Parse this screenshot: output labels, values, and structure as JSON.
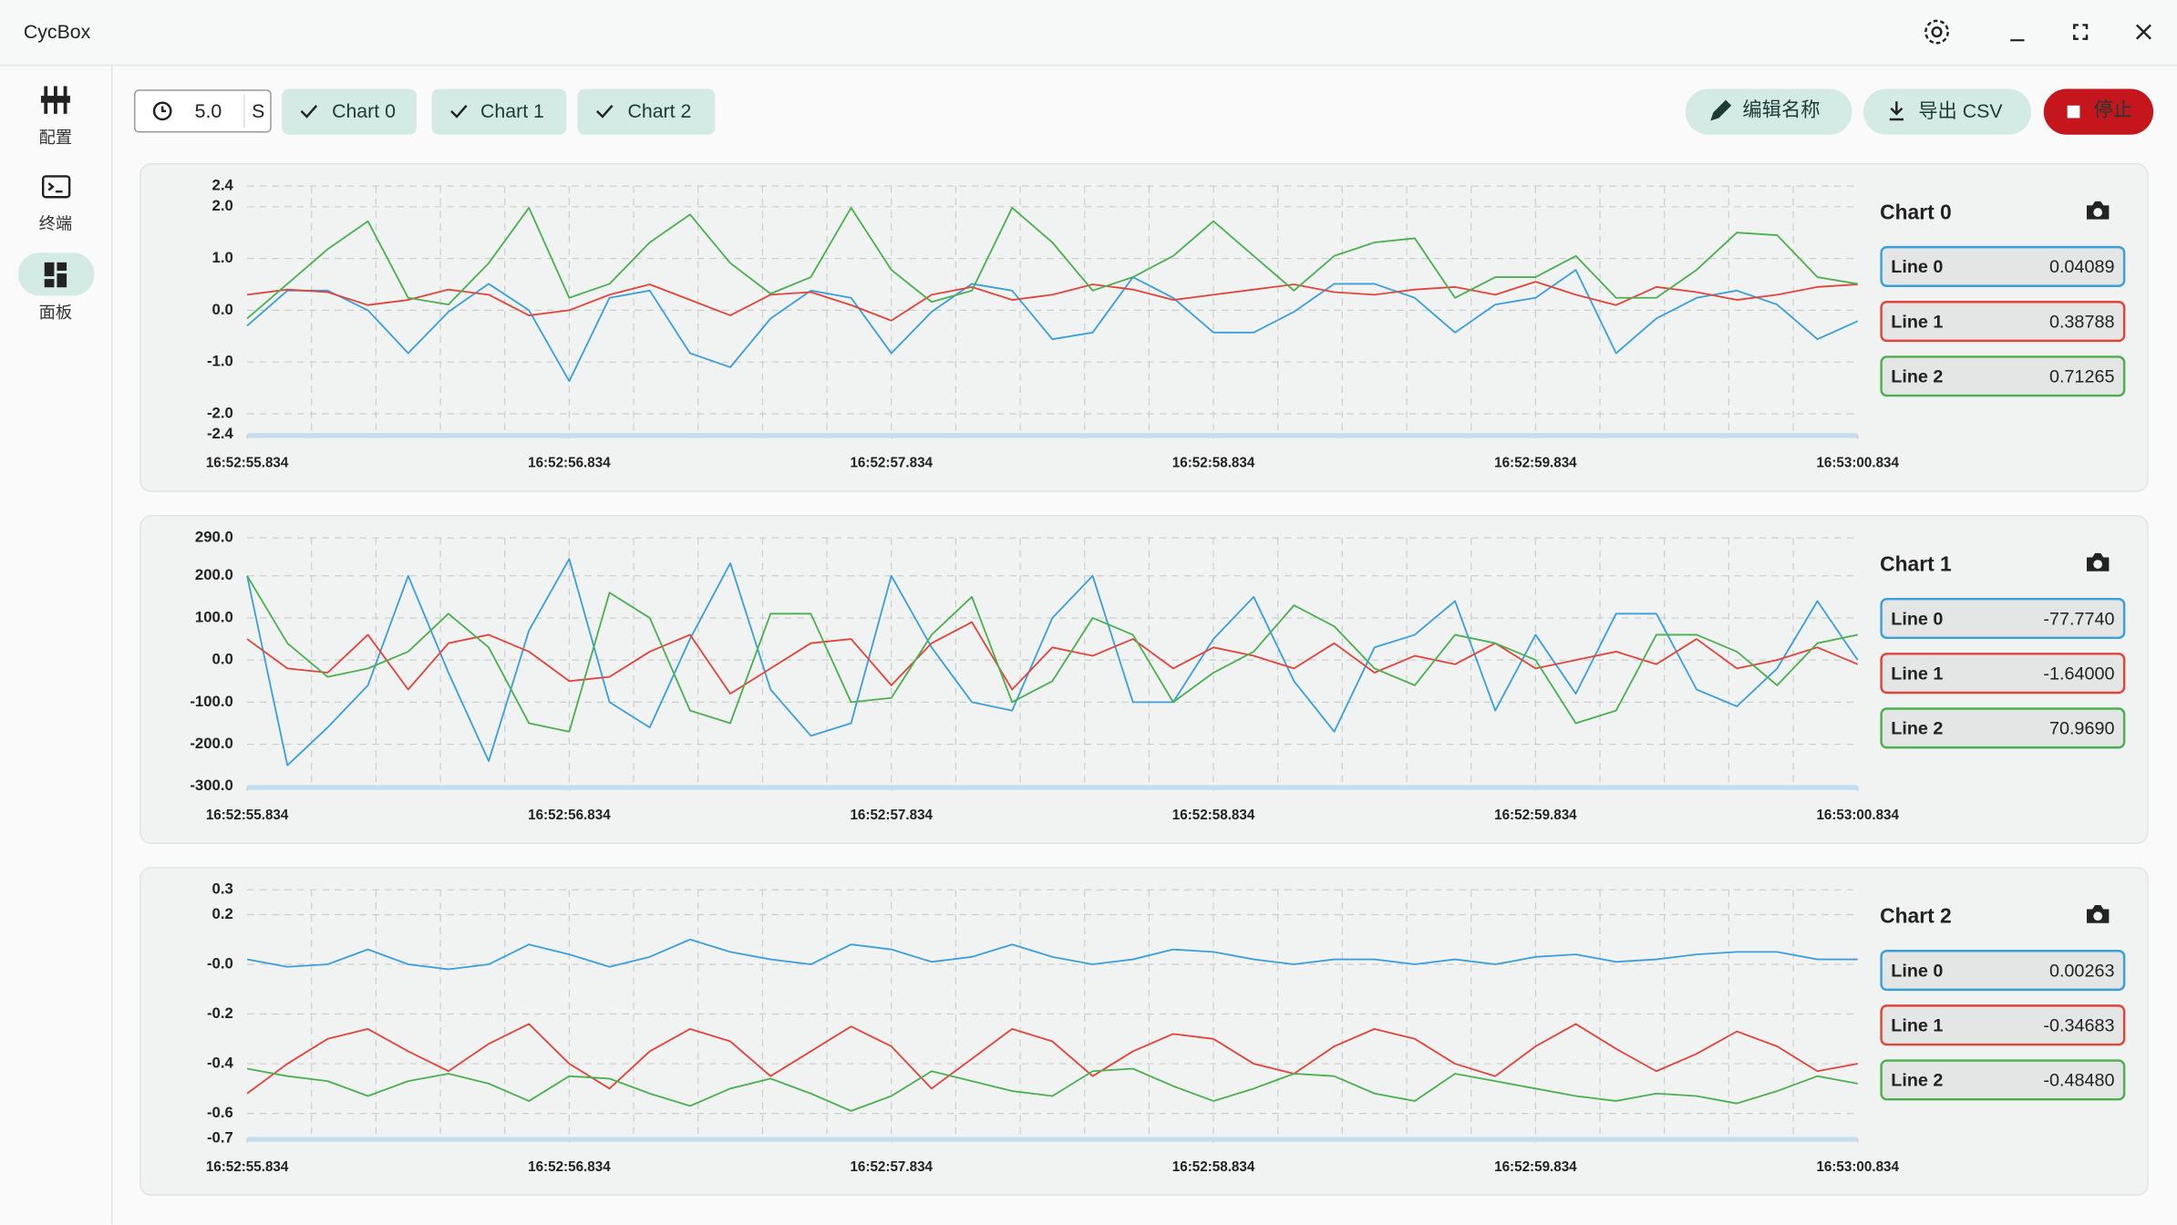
{
  "window": {
    "title": "CycBox"
  },
  "sidebar": [
    "配置",
    "终端",
    "面板"
  ],
  "toolbar": {
    "duration": "5.0",
    "unit": "S",
    "chart_toggles": [
      "Chart 0",
      "Chart 1",
      "Chart 2"
    ],
    "edit_name": "编辑名称",
    "export_csv": "导出 CSV",
    "stop": "停止"
  },
  "chart_data": [
    {
      "type": "line",
      "title": "Chart 0",
      "x": [
        0,
        0.125,
        0.25,
        0.375,
        0.5,
        0.625,
        0.75,
        0.875,
        1,
        1.125,
        1.25,
        1.375,
        1.5,
        1.625,
        1.75,
        1.875,
        2,
        2.125,
        2.25,
        2.375,
        2.5,
        2.625,
        2.75,
        2.875,
        3,
        3.125,
        3.25,
        3.375,
        3.5,
        3.625,
        3.75,
        3.875,
        4,
        4.125,
        4.25,
        4.375,
        4.5,
        4.625,
        4.75,
        4.875,
        5
      ],
      "xlim": [
        0,
        5
      ],
      "xticks": [
        {
          "value": 0,
          "label": "16:52:55.834"
        },
        {
          "value": 1,
          "label": "16:52:56.834"
        },
        {
          "value": 2,
          "label": "16:52:57.834"
        },
        {
          "value": 3,
          "label": "16:52:58.834"
        },
        {
          "value": 4,
          "label": "16:52:59.834"
        },
        {
          "value": 5,
          "label": "16:53:00.834"
        }
      ],
      "xgridticks": [
        0.2,
        0.4,
        0.6,
        0.8,
        1,
        1.2,
        1.4,
        1.6,
        1.8,
        2,
        2.2,
        2.4,
        2.6,
        2.8,
        3,
        3.2,
        3.4,
        3.6,
        3.8,
        4,
        4.2,
        4.4,
        4.6,
        4.8
      ],
      "ylim": [
        -2.4,
        2.4
      ],
      "yticks": [
        -2.4,
        {
          "value": -2,
          "label": "-2.0"
        },
        {
          "value": -1,
          "label": "-1.0"
        },
        {
          "value": 0,
          "label": "0.0"
        },
        {
          "value": 1,
          "label": "1.0"
        },
        {
          "value": 2,
          "label": "2.0"
        },
        2.4
      ],
      "grid": true,
      "series": [
        {
          "name": "Line 0",
          "color": "#3b9fdb",
          "current": "0.04089",
          "values": [
            -0.3,
            0.38,
            0.38,
            0,
            -0.83,
            -0.03,
            0.51,
            0,
            -1.37,
            0.24,
            0.38,
            -0.83,
            -1.1,
            -0.16,
            0.38,
            0.24,
            -0.83,
            -0.03,
            0.51,
            0.38,
            -0.56,
            -0.43,
            0.64,
            0.24,
            -0.43,
            -0.43,
            -0.03,
            0.51,
            0.51,
            0.24,
            -0.43,
            0.11,
            0.24,
            0.78,
            -0.83,
            -0.16,
            0.24,
            0.38,
            0.11,
            -0.56,
            -0.21
          ]
        },
        {
          "name": "Line 1",
          "color": "#e0443a",
          "current": "0.38788",
          "values": [
            0.3,
            0.4,
            0.35,
            0.1,
            0.2,
            0.4,
            0.3,
            -0.1,
            0,
            0.3,
            0.5,
            0.2,
            -0.1,
            0.3,
            0.35,
            0.1,
            -0.2,
            0.3,
            0.45,
            0.2,
            0.3,
            0.5,
            0.4,
            0.2,
            0.3,
            0.4,
            0.5,
            0.35,
            0.3,
            0.4,
            0.45,
            0.3,
            0.55,
            0.3,
            0.1,
            0.45,
            0.35,
            0.2,
            0.3,
            0.45,
            0.5
          ]
        },
        {
          "name": "Line 2",
          "color": "#4caf50",
          "current": "0.71265",
          "values": [
            -0.16,
            0.51,
            1.18,
            1.72,
            0.24,
            0.11,
            0.91,
            1.98,
            0.24,
            0.51,
            1.31,
            1.85,
            0.91,
            0.32,
            0.64,
            1.98,
            0.78,
            0.16,
            0.38,
            1.98,
            1.31,
            0.38,
            0.64,
            1.05,
            1.72,
            1.05,
            0.38,
            1.05,
            1.31,
            1.39,
            0.24,
            0.64,
            0.64,
            1.05,
            0.24,
            0.24,
            0.78,
            1.5,
            1.45,
            0.64,
            0.51
          ]
        }
      ]
    },
    {
      "type": "line",
      "title": "Chart 1",
      "x": [
        0,
        0.125,
        0.25,
        0.375,
        0.5,
        0.625,
        0.75,
        0.875,
        1,
        1.125,
        1.25,
        1.375,
        1.5,
        1.625,
        1.75,
        1.875,
        2,
        2.125,
        2.25,
        2.375,
        2.5,
        2.625,
        2.75,
        2.875,
        3,
        3.125,
        3.25,
        3.375,
        3.5,
        3.625,
        3.75,
        3.875,
        4,
        4.125,
        4.25,
        4.375,
        4.5,
        4.625,
        4.75,
        4.875,
        5
      ],
      "xlim": [
        0,
        5
      ],
      "xticks": [
        {
          "value": 0,
          "label": "16:52:55.834"
        },
        {
          "value": 1,
          "label": "16:52:56.834"
        },
        {
          "value": 2,
          "label": "16:52:57.834"
        },
        {
          "value": 3,
          "label": "16:52:58.834"
        },
        {
          "value": 4,
          "label": "16:52:59.834"
        },
        {
          "value": 5,
          "label": "16:53:00.834"
        }
      ],
      "xgridticks": [
        0.2,
        0.4,
        0.6,
        0.8,
        1,
        1.2,
        1.4,
        1.6,
        1.8,
        2,
        2.2,
        2.4,
        2.6,
        2.8,
        3,
        3.2,
        3.4,
        3.6,
        3.8,
        4,
        4.2,
        4.4,
        4.6,
        4.8
      ],
      "ylim": [
        -300,
        290
      ],
      "yticks": [
        {
          "value": -300,
          "label": "-300.0"
        },
        {
          "value": -200,
          "label": "-200.0"
        },
        {
          "value": -100,
          "label": "-100.0"
        },
        {
          "value": 0,
          "label": "0.0"
        },
        {
          "value": 100,
          "label": "100.0"
        },
        {
          "value": 200,
          "label": "200.0"
        },
        {
          "value": 290,
          "label": "290.0"
        }
      ],
      "grid": true,
      "series": [
        {
          "name": "Line 0",
          "color": "#3b9fdb",
          "current": "-77.7740",
          "values": [
            200,
            -250,
            -160,
            -60,
            200,
            -30,
            -240,
            70,
            240,
            -100,
            -160,
            50,
            230,
            -70,
            -180,
            -150,
            200,
            30,
            -100,
            -120,
            100,
            200,
            -100,
            -100,
            50,
            150,
            -50,
            -170,
            30,
            60,
            140,
            -120,
            60,
            -80,
            110,
            110,
            -70,
            -110,
            -20,
            140,
            0
          ]
        },
        {
          "name": "Line 1",
          "color": "#e0443a",
          "current": "-1.64000",
          "values": [
            50,
            -20,
            -30,
            60,
            -70,
            40,
            60,
            20,
            -50,
            -40,
            20,
            60,
            -80,
            -20,
            40,
            50,
            -60,
            40,
            90,
            -70,
            30,
            10,
            50,
            -20,
            30,
            10,
            -20,
            40,
            -30,
            10,
            -10,
            40,
            -20,
            0,
            20,
            -10,
            50,
            -20,
            0,
            30,
            -10
          ]
        },
        {
          "name": "Line 2",
          "color": "#4caf50",
          "current": "70.9690",
          "values": [
            200,
            40,
            -40,
            -20,
            20,
            110,
            30,
            -150,
            -170,
            160,
            100,
            -120,
            -150,
            110,
            110,
            -100,
            -90,
            60,
            150,
            -100,
            -50,
            100,
            60,
            -100,
            -30,
            20,
            130,
            80,
            -20,
            -60,
            60,
            40,
            0,
            -150,
            -120,
            60,
            60,
            20,
            -60,
            40,
            60
          ]
        }
      ]
    },
    {
      "type": "line",
      "title": "Chart 2",
      "x": [
        0,
        0.125,
        0.25,
        0.375,
        0.5,
        0.625,
        0.75,
        0.875,
        1,
        1.125,
        1.25,
        1.375,
        1.5,
        1.625,
        1.75,
        1.875,
        2,
        2.125,
        2.25,
        2.375,
        2.5,
        2.625,
        2.75,
        2.875,
        3,
        3.125,
        3.25,
        3.375,
        3.5,
        3.625,
        3.75,
        3.875,
        4,
        4.125,
        4.25,
        4.375,
        4.5,
        4.625,
        4.75,
        4.875,
        5
      ],
      "xlim": [
        0,
        5
      ],
      "xticks": [
        {
          "value": 0,
          "label": "16:52:55.834"
        },
        {
          "value": 1,
          "label": "16:52:56.834"
        },
        {
          "value": 2,
          "label": "16:52:57.834"
        },
        {
          "value": 3,
          "label": "16:52:58.834"
        },
        {
          "value": 4,
          "label": "16:52:59.834"
        },
        {
          "value": 5,
          "label": "16:53:00.834"
        }
      ],
      "xgridticks": [
        0.2,
        0.4,
        0.6,
        0.8,
        1,
        1.2,
        1.4,
        1.6,
        1.8,
        2,
        2.2,
        2.4,
        2.6,
        2.8,
        3,
        3.2,
        3.4,
        3.6,
        3.8,
        4,
        4.2,
        4.4,
        4.6,
        4.8
      ],
      "ylim": [
        -0.7,
        0.3
      ],
      "yticks": [
        -0.7,
        -0.6,
        -0.4,
        -0.2,
        {
          "value": 0,
          "label": "-0.0"
        },
        0.2,
        0.3
      ],
      "grid": true,
      "series": [
        {
          "name": "Line 0",
          "color": "#3b9fdb",
          "current": "0.00263",
          "values": [
            0.02,
            -0.01,
            0,
            0.06,
            0,
            -0.02,
            0,
            0.08,
            0.04,
            -0.01,
            0.03,
            0.1,
            0.05,
            0.02,
            0,
            0.08,
            0.06,
            0.01,
            0.03,
            0.08,
            0.03,
            0,
            0.02,
            0.06,
            0.05,
            0.02,
            0,
            0.02,
            0.02,
            0,
            0.02,
            0,
            0.03,
            0.04,
            0.01,
            0.02,
            0.04,
            0.05,
            0.05,
            0.02,
            0.02
          ]
        },
        {
          "name": "Line 1",
          "color": "#e0443a",
          "current": "-0.34683",
          "values": [
            -0.52,
            -0.4,
            -0.3,
            -0.26,
            -0.35,
            -0.43,
            -0.32,
            -0.24,
            -0.4,
            -0.5,
            -0.35,
            -0.26,
            -0.31,
            -0.45,
            -0.35,
            -0.25,
            -0.33,
            -0.5,
            -0.38,
            -0.26,
            -0.31,
            -0.45,
            -0.35,
            -0.28,
            -0.3,
            -0.4,
            -0.44,
            -0.33,
            -0.26,
            -0.3,
            -0.4,
            -0.45,
            -0.33,
            -0.24,
            -0.34,
            -0.43,
            -0.36,
            -0.27,
            -0.33,
            -0.43,
            -0.4
          ]
        },
        {
          "name": "Line 2",
          "color": "#4caf50",
          "current": "-0.48480",
          "values": [
            -0.42,
            -0.45,
            -0.47,
            -0.53,
            -0.47,
            -0.44,
            -0.48,
            -0.55,
            -0.45,
            -0.46,
            -0.52,
            -0.57,
            -0.5,
            -0.46,
            -0.52,
            -0.59,
            -0.53,
            -0.43,
            -0.47,
            -0.51,
            -0.53,
            -0.43,
            -0.42,
            -0.49,
            -0.55,
            -0.5,
            -0.44,
            -0.45,
            -0.52,
            -0.55,
            -0.44,
            -0.47,
            -0.5,
            -0.53,
            -0.55,
            -0.52,
            -0.53,
            -0.56,
            -0.51,
            -0.45,
            -0.48
          ]
        }
      ]
    }
  ]
}
